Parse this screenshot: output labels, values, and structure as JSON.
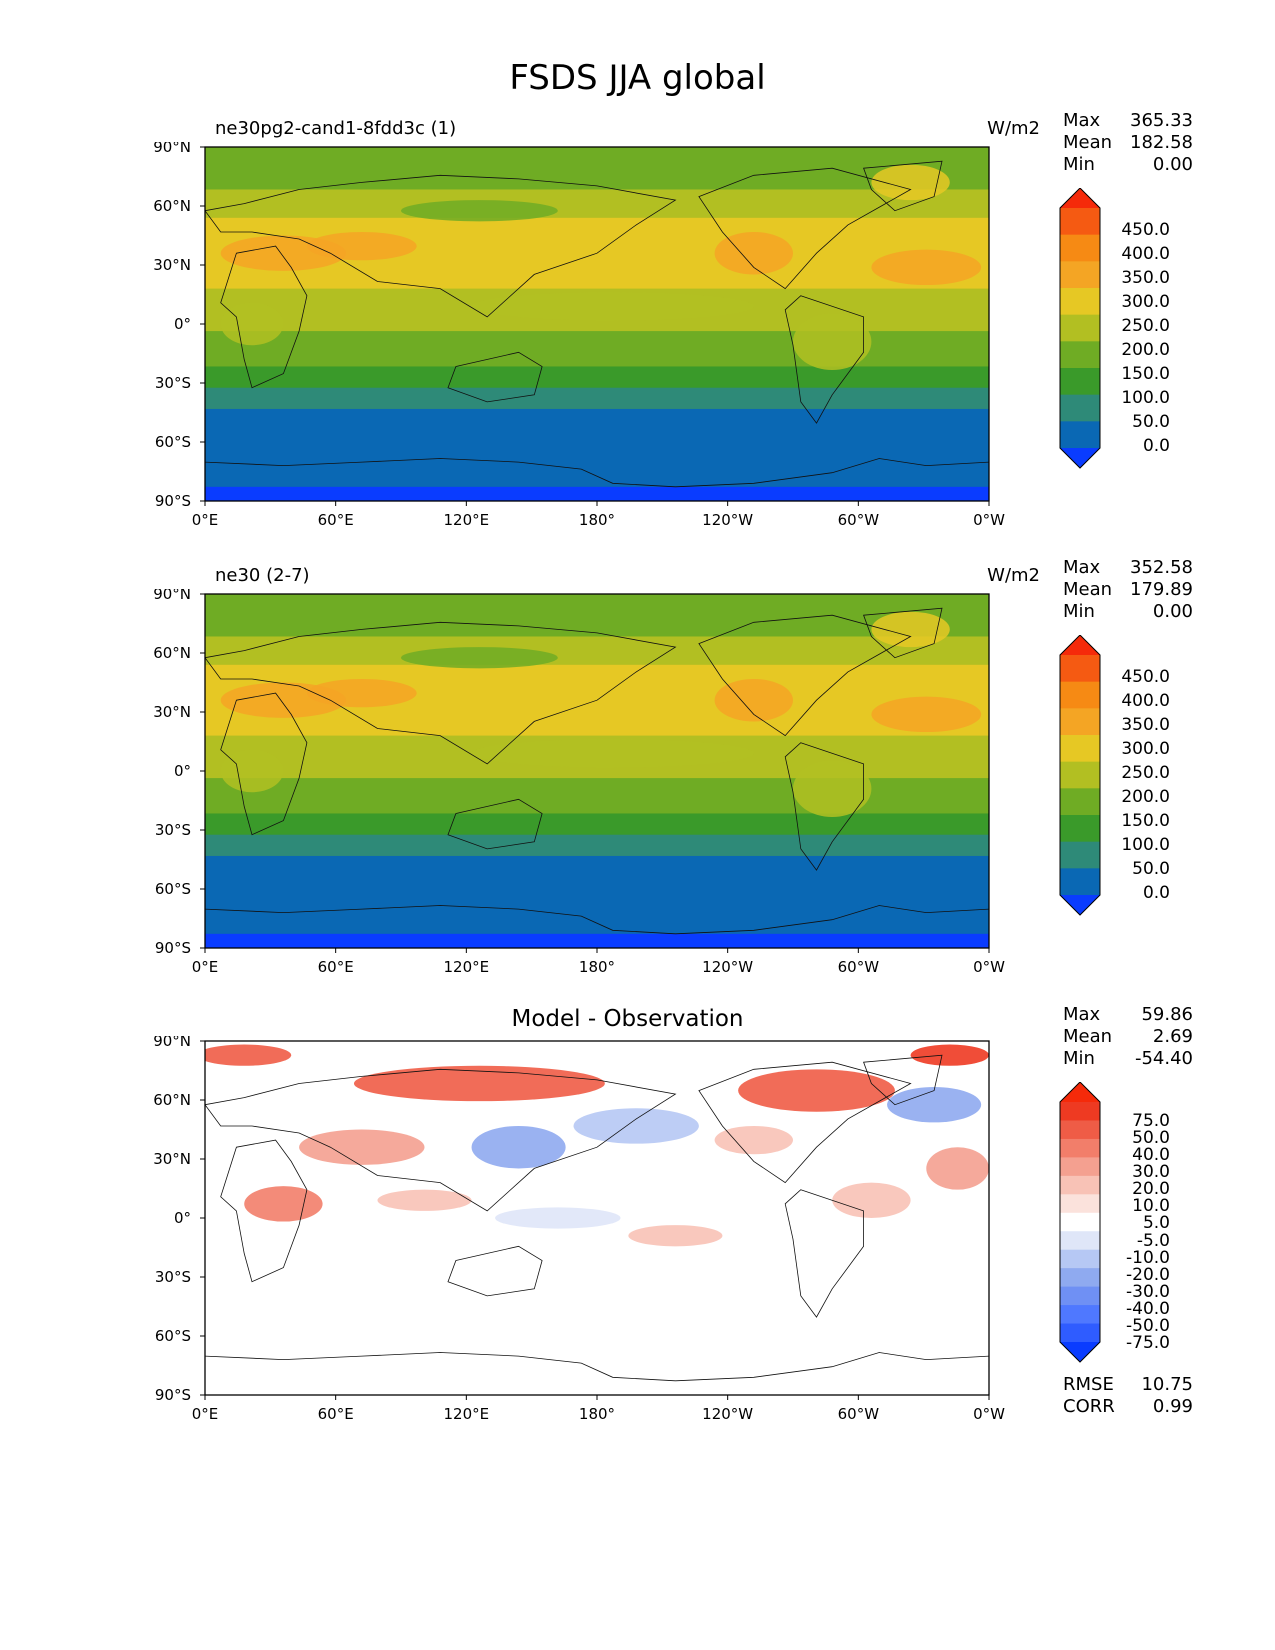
{
  "title": "FSDS JJA global",
  "lat_ticks": [
    "90°N",
    "60°N",
    "30°N",
    "0°",
    "30°S",
    "60°S",
    "90°S"
  ],
  "lon_ticks": [
    "0°E",
    "60°E",
    "120°E",
    "180°",
    "120°W",
    "60°W",
    "0°W"
  ],
  "panels": [
    {
      "title": "ne30pg2-cand1-8fdd3c (1)",
      "units": "W/m2",
      "stats": {
        "max_label": "Max",
        "max": "365.33",
        "mean_label": "Mean",
        "mean": "182.58",
        "min_label": "Min",
        "min": "0.00"
      },
      "levels": [
        "450.0",
        "400.0",
        "350.0",
        "300.0",
        "250.0",
        "200.0",
        "150.0",
        "100.0",
        "50.0",
        "0.0"
      ]
    },
    {
      "title": "ne30 (2-7)",
      "units": "W/m2",
      "stats": {
        "max_label": "Max",
        "max": "352.58",
        "mean_label": "Mean",
        "mean": "179.89",
        "min_label": "Min",
        "min": "0.00"
      },
      "levels": [
        "450.0",
        "400.0",
        "350.0",
        "300.0",
        "250.0",
        "200.0",
        "150.0",
        "100.0",
        "50.0",
        "0.0"
      ]
    },
    {
      "title": "Model - Observation",
      "stats": {
        "max_label": "Max",
        "max": "59.86",
        "mean_label": "Mean",
        "mean": "2.69",
        "min_label": "Min",
        "min": "-54.40"
      },
      "levels": [
        "75.0",
        "50.0",
        "40.0",
        "30.0",
        "20.0",
        "10.0",
        "5.0",
        "-5.0",
        "-10.0",
        "-20.0",
        "-30.0",
        "-40.0",
        "-50.0",
        "-75.0"
      ],
      "rmse_label": "RMSE",
      "rmse": "10.75",
      "corr_label": "CORR",
      "corr": "0.99"
    }
  ],
  "colors": {
    "field_palette": [
      "#0a3cff",
      "#0a68b4",
      "#2e8a78",
      "#3a9a2a",
      "#6fac24",
      "#b2bf22",
      "#e6c824",
      "#f4a524",
      "#f68a14",
      "#f55a12",
      "#f52a0a"
    ],
    "diff_palette": [
      "#0a3cff",
      "#2f5cff",
      "#4f78ff",
      "#6f90f4",
      "#8faaf0",
      "#b6c8f4",
      "#dfe6f8",
      "#ffffff",
      "#fbe2dc",
      "#f8c2b6",
      "#f4a090",
      "#f27e6a",
      "#ef5c46",
      "#ee3a22",
      "#f52a0a"
    ]
  }
}
